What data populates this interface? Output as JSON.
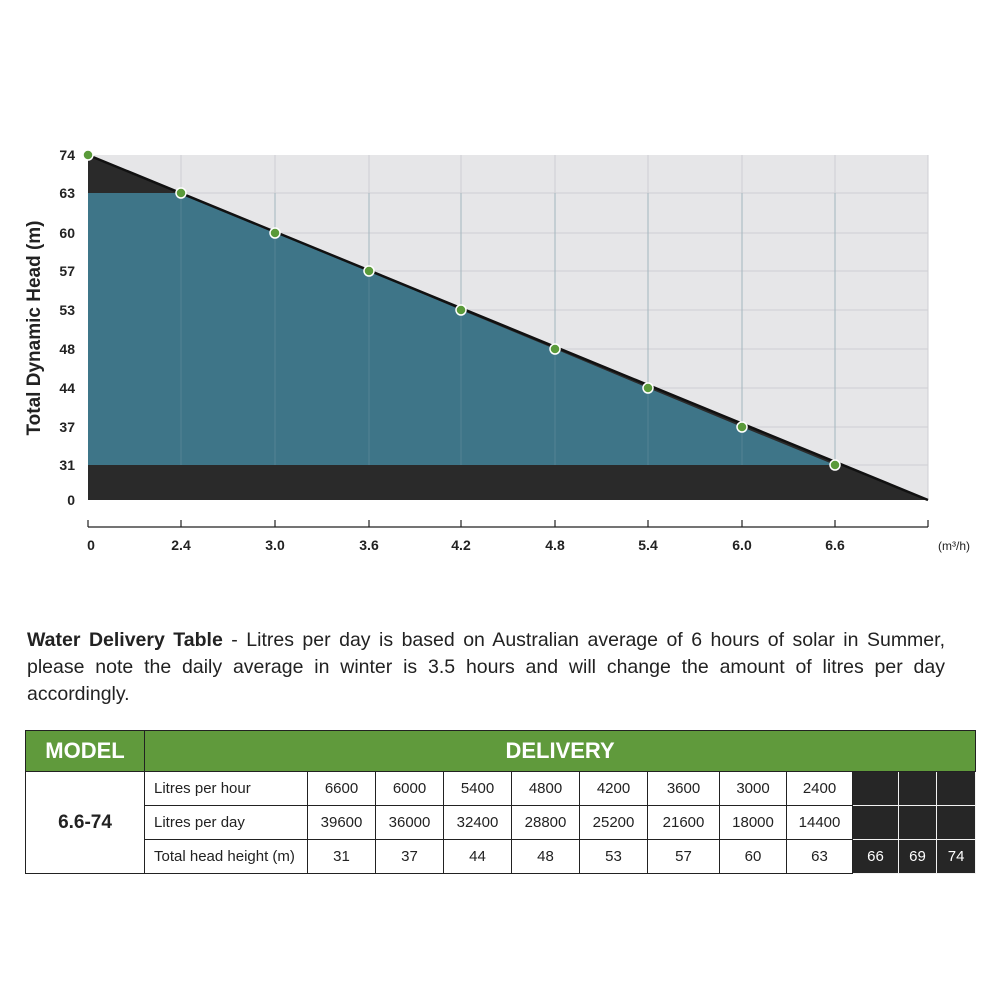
{
  "chart_data": {
    "type": "area",
    "ylabel": "Total Dynamic Head (m)",
    "x_unit": "(m³/h)",
    "x_ticks": [
      "0",
      "2.4",
      "3.0",
      "3.6",
      "4.2",
      "4.8",
      "5.4",
      "6.0",
      "6.6"
    ],
    "y_ticks": [
      "74",
      "63",
      "60",
      "57",
      "53",
      "48",
      "44",
      "37",
      "31",
      "0"
    ],
    "points": [
      {
        "x": 0,
        "y": 74
      },
      {
        "x": 2.4,
        "y": 63
      },
      {
        "x": 3.0,
        "y": 60
      },
      {
        "x": 3.6,
        "y": 57
      },
      {
        "x": 4.2,
        "y": 53
      },
      {
        "x": 4.8,
        "y": 48
      },
      {
        "x": 5.4,
        "y": 44
      },
      {
        "x": 6.0,
        "y": 37
      },
      {
        "x": 6.6,
        "y": 31
      }
    ],
    "grid": true,
    "colors": {
      "background": "#e6e6e8",
      "area": "#3e7588",
      "dark": "#2a2a2a",
      "marker": "#5a9a3a",
      "line": "#111111"
    }
  },
  "note": {
    "title": "Water Delivery Table",
    "text": " - Litres per day is based on Australian average of 6 hours of solar in Summer, please note the daily average in winter is 3.5 hours and will change the amount of litres per day accordingly."
  },
  "table": {
    "model_header": "MODEL",
    "delivery_header": "DELIVERY",
    "model": "6.6-74",
    "rows": [
      {
        "label": "Litres per hour",
        "values": [
          "6600",
          "6000",
          "5400",
          "4800",
          "4200",
          "3600",
          "3000",
          "2400",
          "",
          "",
          ""
        ]
      },
      {
        "label": "Litres per day",
        "values": [
          "39600",
          "36000",
          "32400",
          "28800",
          "25200",
          "21600",
          "18000",
          "14400",
          "",
          "",
          ""
        ]
      },
      {
        "label": "Total head height (m)",
        "values": [
          "31",
          "37",
          "44",
          "48",
          "53",
          "57",
          "60",
          "63",
          "66",
          "69",
          "74"
        ]
      }
    ],
    "colors": {
      "header": "#609a3c",
      "dark_cell": "#262626"
    }
  }
}
